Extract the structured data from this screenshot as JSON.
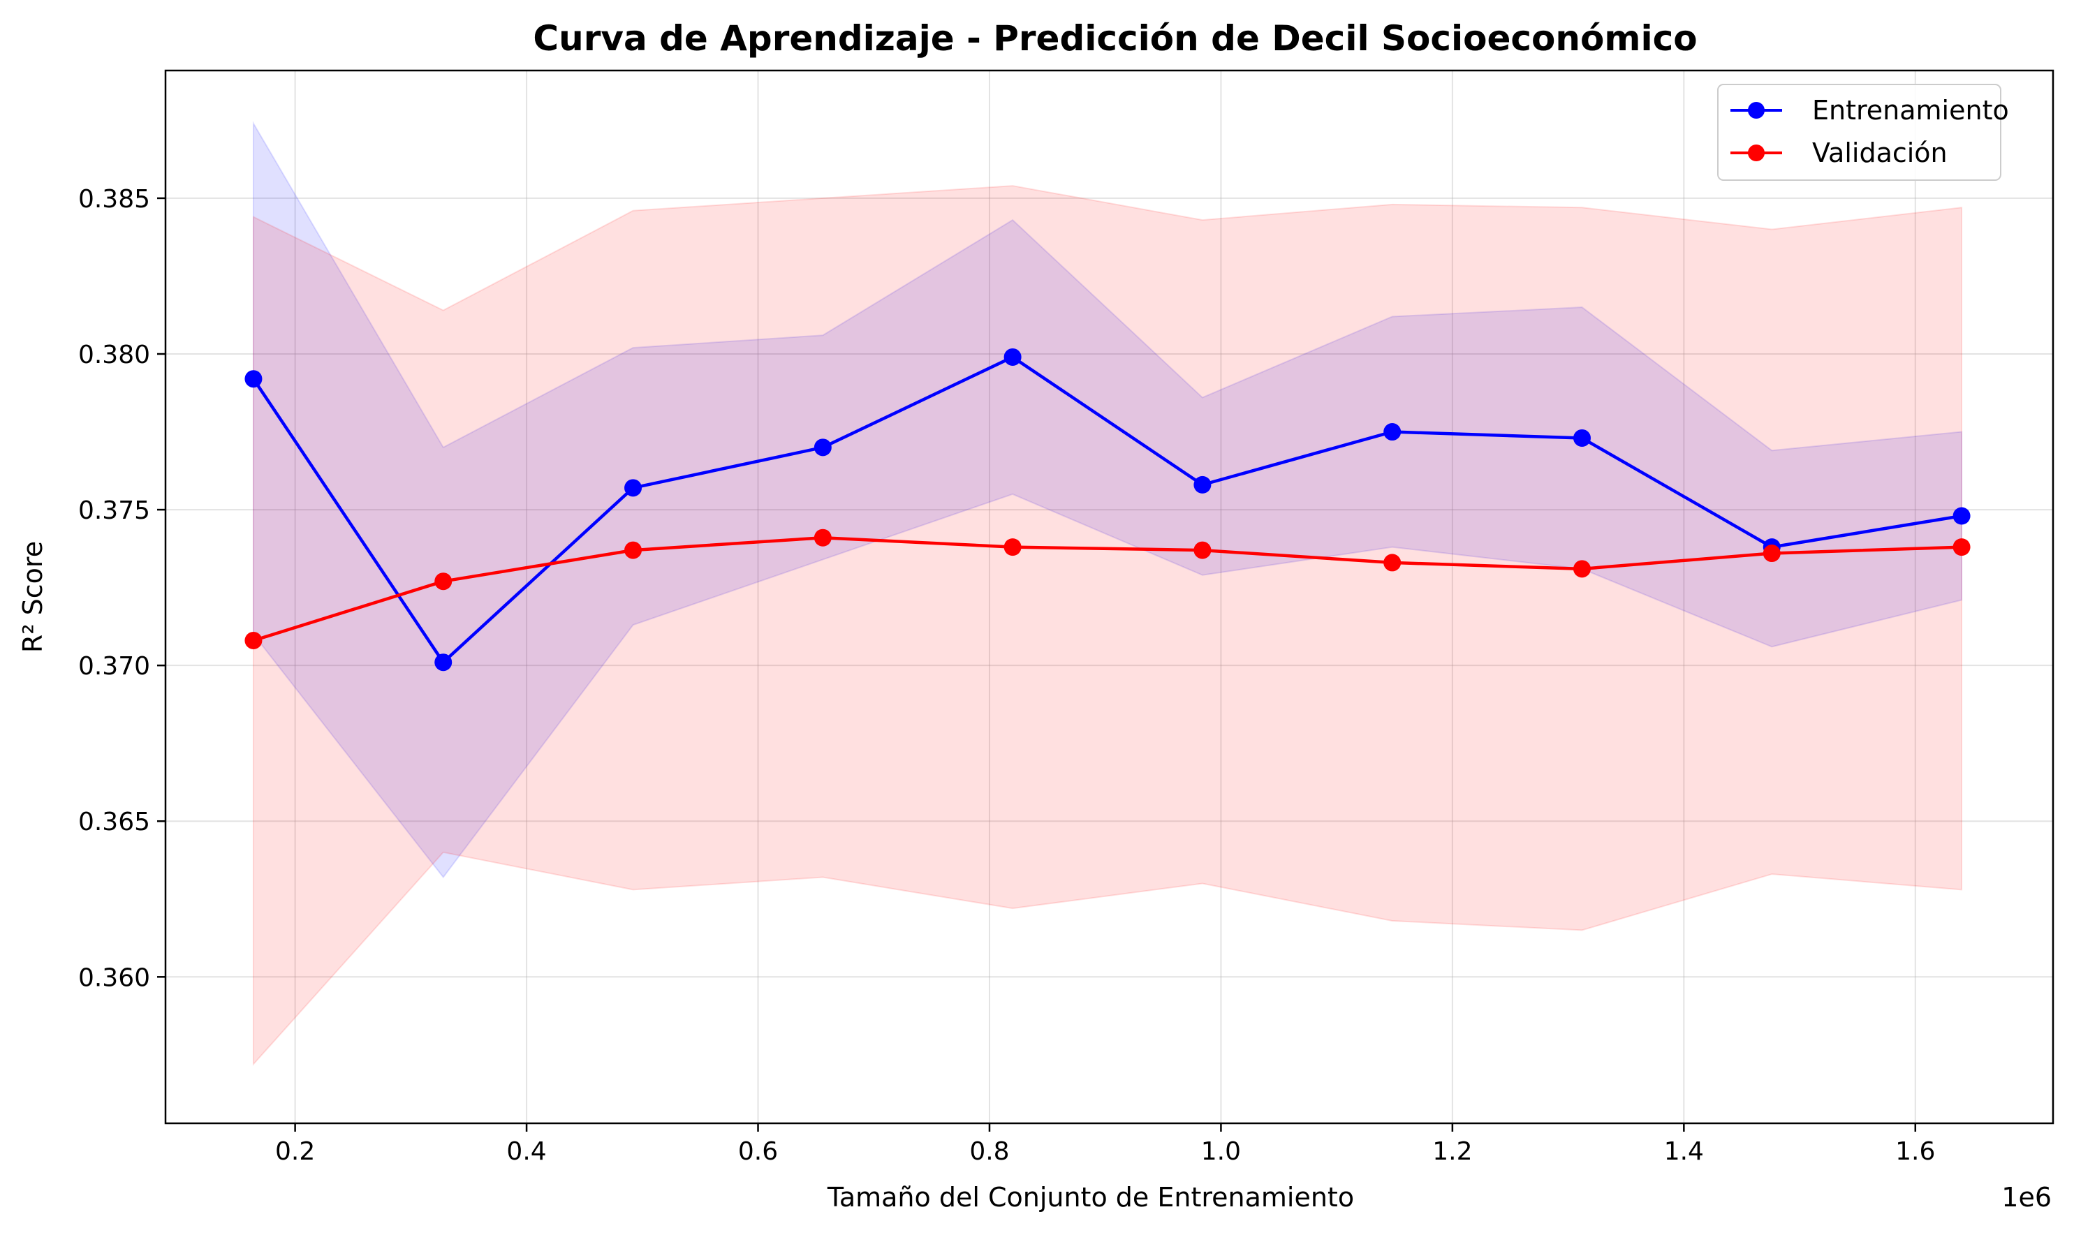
{
  "chart_data": {
    "type": "line",
    "title": "Curva de Aprendizaje - Predicción de Decil Socioeconómico",
    "xlabel": "Tamaño del Conjunto de Entrenamiento",
    "ylabel": "R² Score",
    "x_offset_label": "1e6",
    "x_scale_factor": 1000000,
    "xlim": [
      88000,
      1719000
    ],
    "ylim": [
      0.3553,
      0.3891
    ],
    "grid": true,
    "legend_position": "top-right",
    "x_ticks": [
      200000,
      400000,
      600000,
      800000,
      1000000,
      1200000,
      1400000,
      1600000
    ],
    "x_tick_labels": [
      "0.2",
      "0.4",
      "0.6",
      "0.8",
      "1.0",
      "1.2",
      "1.4",
      "1.6"
    ],
    "y_ticks": [
      0.36,
      0.365,
      0.37,
      0.375,
      0.38,
      0.385
    ],
    "y_tick_labels": [
      "0.360",
      "0.365",
      "0.370",
      "0.375",
      "0.380",
      "0.385"
    ],
    "x": [
      164000,
      328000,
      492000,
      656000,
      820000,
      984000,
      1148000,
      1312000,
      1476000,
      1640000
    ],
    "series": [
      {
        "name": "Entrenamiento",
        "color": "#0000ff",
        "band_color": "#0000ff",
        "values": [
          0.3792,
          0.3701,
          0.3757,
          0.377,
          0.3799,
          0.3758,
          0.3775,
          0.3773,
          0.3738,
          0.3748
        ],
        "band_upper": [
          0.3874,
          0.377,
          0.3802,
          0.3806,
          0.3843,
          0.3786,
          0.3812,
          0.3815,
          0.3769,
          0.3775
        ],
        "band_lower": [
          0.371,
          0.3632,
          0.3713,
          0.3734,
          0.3755,
          0.3729,
          0.3738,
          0.3731,
          0.3706,
          0.3721
        ]
      },
      {
        "name": "Validación",
        "color": "#ff0000",
        "band_color": "#ff0000",
        "values": [
          0.3708,
          0.3727,
          0.3737,
          0.3741,
          0.3738,
          0.3737,
          0.3733,
          0.3731,
          0.3736,
          0.3738
        ],
        "band_upper": [
          0.3844,
          0.3814,
          0.3846,
          0.385,
          0.3854,
          0.3843,
          0.3848,
          0.3847,
          0.384,
          0.3847
        ],
        "band_lower": [
          0.3572,
          0.364,
          0.3628,
          0.3632,
          0.3622,
          0.363,
          0.3618,
          0.3615,
          0.3633,
          0.3628
        ]
      }
    ]
  }
}
